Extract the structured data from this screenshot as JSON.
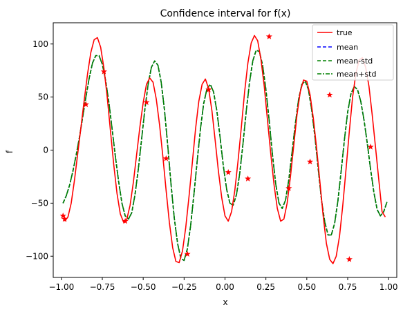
{
  "chart_data": {
    "type": "line",
    "title": "Confidence interval for f(x)",
    "xlabel": "x",
    "ylabel": "f",
    "xlim": [
      -1.05,
      1.05
    ],
    "ylim": [
      -120,
      120
    ],
    "xticks": [
      -1.0,
      -0.75,
      -0.5,
      -0.25,
      0.0,
      0.25,
      0.5,
      0.75,
      1.0
    ],
    "xtick_labels": [
      "−1.00",
      "−0.75",
      "−0.50",
      "−0.25",
      "0.00",
      "0.25",
      "0.50",
      "0.75",
      "1.00"
    ],
    "yticks": [
      -100,
      -50,
      0,
      50,
      100
    ],
    "ytick_labels": [
      "−100",
      "−50",
      "0",
      "50",
      "100"
    ],
    "legend_position": "top-right",
    "colors": {
      "true": "#ff0000",
      "mean": "#0000ff",
      "mean_std": "#008000",
      "mean_plus_std": "#008000",
      "samples": "#ff0000"
    },
    "series": [
      {
        "name": "true",
        "style": "solid",
        "x": [
          -0.98,
          -0.96,
          -0.94,
          -0.92,
          -0.9,
          -0.88,
          -0.86,
          -0.84,
          -0.82,
          -0.8,
          -0.78,
          -0.76,
          -0.74,
          -0.72,
          -0.7,
          -0.68,
          -0.66,
          -0.64,
          -0.62,
          -0.6,
          -0.58,
          -0.56,
          -0.54,
          -0.52,
          -0.5,
          -0.48,
          -0.46,
          -0.44,
          -0.42,
          -0.4,
          -0.38,
          -0.36,
          -0.34,
          -0.32,
          -0.3,
          -0.28,
          -0.26,
          -0.24,
          -0.22,
          -0.2,
          -0.18,
          -0.16,
          -0.14,
          -0.12,
          -0.1,
          -0.08,
          -0.06,
          -0.04,
          -0.02,
          0.0,
          0.02,
          0.04,
          0.06,
          0.08,
          0.1,
          0.12,
          0.14,
          0.16,
          0.18,
          0.2,
          0.22,
          0.24,
          0.26,
          0.28,
          0.3,
          0.32,
          0.34,
          0.36,
          0.38,
          0.4,
          0.42,
          0.44,
          0.46,
          0.48,
          0.5,
          0.52,
          0.54,
          0.56,
          0.58,
          0.6,
          0.62,
          0.64,
          0.66,
          0.68,
          0.7,
          0.72,
          0.74,
          0.76,
          0.78,
          0.8,
          0.82,
          0.84,
          0.86,
          0.88,
          0.9,
          0.92,
          0.94,
          0.96,
          0.98
        ],
        "y": [
          -67,
          -63,
          -50,
          -28,
          -3,
          22,
          48,
          72,
          92,
          104,
          106,
          97,
          77,
          50,
          18,
          -14,
          -41,
          -60,
          -68,
          -65,
          -52,
          -30,
          -4,
          22,
          45,
          62,
          68,
          64,
          48,
          24,
          -6,
          -38,
          -68,
          -92,
          -105,
          -106,
          -95,
          -73,
          -44,
          -12,
          20,
          46,
          62,
          67,
          58,
          37,
          9,
          -20,
          -45,
          -62,
          -67,
          -58,
          -38,
          -10,
          22,
          55,
          82,
          101,
          108,
          103,
          85,
          60,
          28,
          -4,
          -33,
          -55,
          -67,
          -65,
          -50,
          -25,
          4,
          33,
          55,
          66,
          65,
          52,
          30,
          2,
          -30,
          -62,
          -88,
          -103,
          -107,
          -100,
          -81,
          -52,
          -18,
          18,
          50,
          72,
          85,
          87,
          78,
          60,
          33,
          3,
          -28,
          -58,
          -63
        ]
      },
      {
        "name": "mean",
        "style": "dashed",
        "x": [
          -0.99,
          -0.97,
          -0.95,
          -0.93,
          -0.91,
          -0.89,
          -0.87,
          -0.85,
          -0.83,
          -0.81,
          -0.79,
          -0.77,
          -0.75,
          -0.73,
          -0.71,
          -0.69,
          -0.67,
          -0.65,
          -0.63,
          -0.61,
          -0.59,
          -0.57,
          -0.55,
          -0.53,
          -0.51,
          -0.49,
          -0.47,
          -0.45,
          -0.43,
          -0.41,
          -0.39,
          -0.37,
          -0.35,
          -0.33,
          -0.31,
          -0.29,
          -0.27,
          -0.25,
          -0.23,
          -0.21,
          -0.19,
          -0.17,
          -0.15,
          -0.13,
          -0.11,
          -0.09,
          -0.07,
          -0.05,
          -0.03,
          -0.01,
          0.01,
          0.03,
          0.05,
          0.07,
          0.09,
          0.11,
          0.13,
          0.15,
          0.17,
          0.19,
          0.21,
          0.23,
          0.25,
          0.27,
          0.29,
          0.31,
          0.33,
          0.35,
          0.37,
          0.39,
          0.41,
          0.43,
          0.45,
          0.47,
          0.49,
          0.51,
          0.53,
          0.55,
          0.57,
          0.59,
          0.61,
          0.63,
          0.65,
          0.67,
          0.69,
          0.71,
          0.73,
          0.75,
          0.77,
          0.79,
          0.81,
          0.83,
          0.85,
          0.87,
          0.89,
          0.91,
          0.93,
          0.95,
          0.97,
          0.99
        ],
        "y": [
          -50,
          -43,
          -33,
          -20,
          -5,
          12,
          31,
          50,
          68,
          82,
          89,
          89,
          81,
          66,
          45,
          20,
          -6,
          -30,
          -50,
          -62,
          -65,
          -59,
          -42,
          -18,
          10,
          38,
          62,
          78,
          84,
          80,
          64,
          38,
          4,
          -32,
          -64,
          -88,
          -102,
          -104,
          -93,
          -71,
          -42,
          -10,
          20,
          44,
          58,
          62,
          55,
          37,
          12,
          -15,
          -37,
          -50,
          -52,
          -42,
          -22,
          6,
          37,
          64,
          84,
          94,
          93,
          80,
          57,
          28,
          -4,
          -32,
          -50,
          -55,
          -47,
          -28,
          -2,
          25,
          48,
          62,
          65,
          57,
          38,
          12,
          -18,
          -47,
          -68,
          -80,
          -80,
          -69,
          -48,
          -20,
          10,
          36,
          53,
          60,
          57,
          46,
          28,
          6,
          -18,
          -40,
          -56,
          -62,
          -58,
          -49
        ]
      },
      {
        "name": "mean-std",
        "style": "dashed",
        "x": [
          -0.99,
          -0.97,
          -0.95,
          -0.93,
          -0.91,
          -0.89,
          -0.87,
          -0.85,
          -0.83,
          -0.81,
          -0.79,
          -0.77,
          -0.75,
          -0.73,
          -0.71,
          -0.69,
          -0.67,
          -0.65,
          -0.63,
          -0.61,
          -0.59,
          -0.57,
          -0.55,
          -0.53,
          -0.51,
          -0.49,
          -0.47,
          -0.45,
          -0.43,
          -0.41,
          -0.39,
          -0.37,
          -0.35,
          -0.33,
          -0.31,
          -0.29,
          -0.27,
          -0.25,
          -0.23,
          -0.21,
          -0.19,
          -0.17,
          -0.15,
          -0.13,
          -0.11,
          -0.09,
          -0.07,
          -0.05,
          -0.03,
          -0.01,
          0.01,
          0.03,
          0.05,
          0.07,
          0.09,
          0.11,
          0.13,
          0.15,
          0.17,
          0.19,
          0.21,
          0.23,
          0.25,
          0.27,
          0.29,
          0.31,
          0.33,
          0.35,
          0.37,
          0.39,
          0.41,
          0.43,
          0.45,
          0.47,
          0.49,
          0.51,
          0.53,
          0.55,
          0.57,
          0.59,
          0.61,
          0.63,
          0.65,
          0.67,
          0.69,
          0.71,
          0.73,
          0.75,
          0.77,
          0.79,
          0.81,
          0.83,
          0.85,
          0.87,
          0.89,
          0.91,
          0.93,
          0.95,
          0.97,
          0.99
        ],
        "y": [
          -50,
          -43,
          -33,
          -20,
          -5,
          12,
          31,
          50,
          68,
          82,
          89,
          89,
          81,
          66,
          45,
          20,
          -6,
          -30,
          -50,
          -62,
          -65,
          -59,
          -42,
          -18,
          10,
          38,
          62,
          78,
          84,
          80,
          64,
          38,
          4,
          -32,
          -64,
          -88,
          -102,
          -104,
          -93,
          -71,
          -42,
          -10,
          20,
          44,
          58,
          62,
          55,
          37,
          12,
          -15,
          -37,
          -50,
          -52,
          -42,
          -22,
          6,
          37,
          64,
          84,
          94,
          93,
          80,
          57,
          28,
          -4,
          -32,
          -50,
          -55,
          -47,
          -28,
          -2,
          25,
          48,
          62,
          65,
          57,
          38,
          12,
          -18,
          -47,
          -68,
          -80,
          -80,
          -69,
          -48,
          -20,
          10,
          36,
          53,
          60,
          57,
          46,
          28,
          6,
          -18,
          -40,
          -56,
          -62,
          -58,
          -49
        ]
      },
      {
        "name": "mean+std",
        "style": "dashdot",
        "x": [
          -0.99,
          -0.97,
          -0.95,
          -0.93,
          -0.91,
          -0.89,
          -0.87,
          -0.85,
          -0.83,
          -0.81,
          -0.79,
          -0.77,
          -0.75,
          -0.73,
          -0.71,
          -0.69,
          -0.67,
          -0.65,
          -0.63,
          -0.61,
          -0.59,
          -0.57,
          -0.55,
          -0.53,
          -0.51,
          -0.49,
          -0.47,
          -0.45,
          -0.43,
          -0.41,
          -0.39,
          -0.37,
          -0.35,
          -0.33,
          -0.31,
          -0.29,
          -0.27,
          -0.25,
          -0.23,
          -0.21,
          -0.19,
          -0.17,
          -0.15,
          -0.13,
          -0.11,
          -0.09,
          -0.07,
          -0.05,
          -0.03,
          -0.01,
          0.01,
          0.03,
          0.05,
          0.07,
          0.09,
          0.11,
          0.13,
          0.15,
          0.17,
          0.19,
          0.21,
          0.23,
          0.25,
          0.27,
          0.29,
          0.31,
          0.33,
          0.35,
          0.37,
          0.39,
          0.41,
          0.43,
          0.45,
          0.47,
          0.49,
          0.51,
          0.53,
          0.55,
          0.57,
          0.59,
          0.61,
          0.63,
          0.65,
          0.67,
          0.69,
          0.71,
          0.73,
          0.75,
          0.77,
          0.79,
          0.81,
          0.83,
          0.85,
          0.87,
          0.89,
          0.91,
          0.93,
          0.95,
          0.97,
          0.99
        ],
        "y": [
          -50,
          -43,
          -33,
          -20,
          -5,
          12,
          31,
          50,
          68,
          82,
          89,
          89,
          81,
          66,
          45,
          20,
          -6,
          -30,
          -50,
          -62,
          -65,
          -59,
          -42,
          -18,
          10,
          38,
          62,
          78,
          84,
          80,
          64,
          38,
          4,
          -32,
          -64,
          -88,
          -102,
          -104,
          -93,
          -71,
          -42,
          -10,
          20,
          44,
          58,
          62,
          55,
          37,
          12,
          -15,
          -37,
          -50,
          -52,
          -42,
          -22,
          6,
          37,
          64,
          84,
          94,
          93,
          80,
          57,
          28,
          -4,
          -32,
          -50,
          -55,
          -47,
          -28,
          -2,
          25,
          48,
          62,
          65,
          57,
          38,
          12,
          -18,
          -47,
          -68,
          -80,
          -80,
          -69,
          -48,
          -20,
          10,
          36,
          53,
          60,
          57,
          46,
          28,
          6,
          -18,
          -40,
          -56,
          -62,
          -58,
          -49
        ]
      }
    ],
    "samples": {
      "x": [
        -0.99,
        -0.98,
        -0.85,
        -0.74,
        -0.61,
        -0.48,
        -0.36,
        -0.23,
        -0.1,
        0.02,
        0.14,
        0.27,
        0.39,
        0.52,
        0.64,
        0.76,
        0.89
      ],
      "y": [
        -62,
        -65,
        43,
        74,
        -67,
        45,
        -8,
        -98,
        57,
        -21,
        -27,
        107,
        -36,
        -11,
        52,
        -103,
        3
      ]
    }
  }
}
